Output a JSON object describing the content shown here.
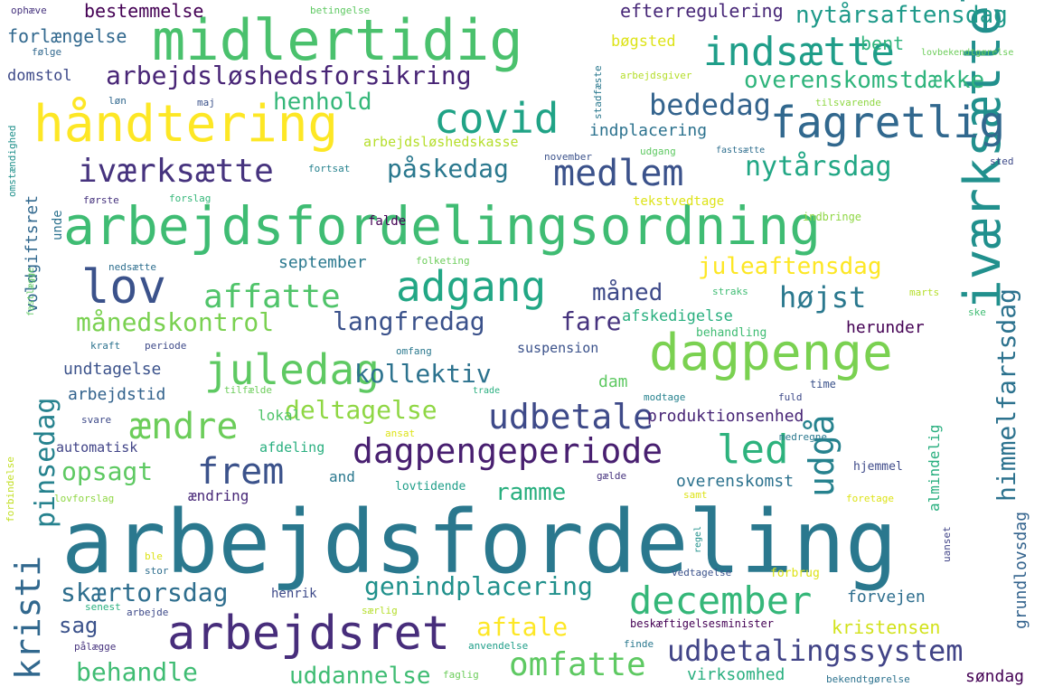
{
  "words": [
    {
      "text": "arbejdsfordeling",
      "color": "#2a788e"
    },
    {
      "text": "arbejdsfordelingsordning",
      "color": "#3fbc73"
    },
    {
      "text": "midlertidig",
      "color": "#4ac16d"
    },
    {
      "text": "håndtering",
      "color": "#fde725"
    },
    {
      "text": "iværksættelse",
      "color": "#21908d"
    },
    {
      "text": "dagpenge",
      "color": "#7ad151"
    },
    {
      "text": "arbejdsret",
      "color": "#472d7b"
    },
    {
      "text": "fagretlig",
      "color": "#31688e"
    },
    {
      "text": "lov",
      "color": "#3b528b"
    },
    {
      "text": "covid",
      "color": "#20a386"
    },
    {
      "text": "indsætte",
      "color": "#1f9e89"
    },
    {
      "text": "adgang",
      "color": "#22a785"
    },
    {
      "text": "juledag",
      "color": "#5ec962"
    },
    {
      "text": "december",
      "color": "#35b779"
    },
    {
      "text": "dagpengeperiode",
      "color": "#481f70"
    },
    {
      "text": "udbetale",
      "color": "#3e4a89"
    },
    {
      "text": "led",
      "color": "#2db27d"
    },
    {
      "text": "medlem",
      "color": "#3b528b"
    },
    {
      "text": "iværksætte",
      "color": "#46337e"
    },
    {
      "text": "udgå",
      "color": "#26828e"
    },
    {
      "text": "himmelfartsdag",
      "color": "#2c728e"
    },
    {
      "text": "udbetalingssystem",
      "color": "#414487"
    },
    {
      "text": "frem",
      "color": "#3b528b"
    },
    {
      "text": "ændre",
      "color": "#6ccd5a"
    },
    {
      "text": "affatte",
      "color": "#50c46a"
    },
    {
      "text": "omfatte",
      "color": "#5ec962"
    },
    {
      "text": "kristi",
      "color": "#31688e"
    },
    {
      "text": "pinsedag",
      "color": "#26828e"
    },
    {
      "text": "nytårsdag",
      "color": "#22a785"
    },
    {
      "text": "bededag",
      "color": "#33638d"
    },
    {
      "text": "arbejdsløshedsforsikring",
      "color": "#482576"
    },
    {
      "text": "overenskomstdække",
      "color": "#2fb47c"
    },
    {
      "text": "nytårsaftensdag",
      "color": "#1f9a8a"
    },
    {
      "text": "behandle",
      "color": "#3fbc73"
    },
    {
      "text": "aftale",
      "color": "#fde725"
    },
    {
      "text": "genindplacering",
      "color": "#21918c"
    },
    {
      "text": "skærtorsdag",
      "color": "#2e6e8e"
    },
    {
      "text": "langfredag",
      "color": "#3b528b"
    },
    {
      "text": "månedskontrol",
      "color": "#7ad151"
    },
    {
      "text": "deltagelse",
      "color": "#8fd744"
    },
    {
      "text": "kollektiv",
      "color": "#2c728e"
    },
    {
      "text": "påskedag",
      "color": "#2a788e"
    },
    {
      "text": "henhold",
      "color": "#35b779"
    },
    {
      "text": "juleaftensdag",
      "color": "#fde725"
    },
    {
      "text": "måned",
      "color": "#3e4a89"
    },
    {
      "text": "fare",
      "color": "#46337e"
    },
    {
      "text": "højst",
      "color": "#2a788e"
    },
    {
      "text": "uddannelse",
      "color": "#3fbc73"
    },
    {
      "text": "ramme",
      "color": "#29af7f"
    },
    {
      "text": "opsagt",
      "color": "#5ec962"
    },
    {
      "text": "sag",
      "color": "#3b528b"
    },
    {
      "text": "bestemmelse",
      "color": "#440154"
    },
    {
      "text": "efterregulering",
      "color": "#482878"
    },
    {
      "text": "forlængelse",
      "color": "#31688e"
    },
    {
      "text": "bøgsted",
      "color": "#dde318"
    },
    {
      "text": "bent",
      "color": "#2fb47c"
    },
    {
      "text": "domstol",
      "color": "#3e4a89"
    },
    {
      "text": "arbejdsløshedskasse",
      "color": "#b5de2b"
    },
    {
      "text": "indplacering",
      "color": "#2c728e"
    },
    {
      "text": "september",
      "color": "#2a788e"
    },
    {
      "text": "undtagelse",
      "color": "#3b528b"
    },
    {
      "text": "arbejdstid",
      "color": "#33638d"
    },
    {
      "text": "produktionsenhed",
      "color": "#482576"
    },
    {
      "text": "afskedigelse",
      "color": "#29af7f"
    },
    {
      "text": "herunder",
      "color": "#440154"
    },
    {
      "text": "lokal",
      "color": "#50c46a"
    },
    {
      "text": "dam",
      "color": "#5ec962"
    },
    {
      "text": "automatisk",
      "color": "#414487"
    },
    {
      "text": "afdeling",
      "color": "#29af7f"
    },
    {
      "text": "overenskomst",
      "color": "#2c728e"
    },
    {
      "text": "kristensen",
      "color": "#d2e21b"
    },
    {
      "text": "forvejen",
      "color": "#2e6e8e"
    },
    {
      "text": "søndag",
      "color": "#440154"
    },
    {
      "text": "virksomhed",
      "color": "#29af7f"
    },
    {
      "text": "grundlovsdag",
      "color": "#33638d"
    },
    {
      "text": "voldgiftsret",
      "color": "#31688e"
    },
    {
      "text": "almindelig",
      "color": "#29af7f"
    },
    {
      "text": "and",
      "color": "#2a788e"
    },
    {
      "text": "ændring",
      "color": "#482878"
    },
    {
      "text": "henrik",
      "color": "#3e4a89"
    },
    {
      "text": "lovtidende",
      "color": "#1f9e89"
    },
    {
      "text": "behandling",
      "color": "#3fbc73"
    },
    {
      "text": "suspension",
      "color": "#3b528b"
    },
    {
      "text": "hjemmel",
      "color": "#3e4a89"
    },
    {
      "text": "unde",
      "color": "#2c728e"
    },
    {
      "text": "falde",
      "color": "#440154"
    },
    {
      "text": "tekstvedtage",
      "color": "#dde318"
    },
    {
      "text": "indbringe",
      "color": "#8fd744"
    },
    {
      "text": "ophæve",
      "color": "#46337e"
    },
    {
      "text": "betingelse",
      "color": "#5ec962"
    },
    {
      "text": "følge",
      "color": "#31688e"
    },
    {
      "text": "løn",
      "color": "#31688e"
    },
    {
      "text": "maj",
      "color": "#3b528b"
    },
    {
      "text": "stadfæste",
      "color": "#2a788e"
    },
    {
      "text": "arbejdsgiver",
      "color": "#b5de2b"
    },
    {
      "text": "lovbekendtgørelse",
      "color": "#6ccd5a"
    },
    {
      "text": "tilsvarende",
      "color": "#8fd744"
    },
    {
      "text": "fortsat",
      "color": "#26828e"
    },
    {
      "text": "november",
      "color": "#3b528b"
    },
    {
      "text": "udgang",
      "color": "#5ec962"
    },
    {
      "text": "fastsætte",
      "color": "#2e6e8e"
    },
    {
      "text": "sted",
      "color": "#3e4a89"
    },
    {
      "text": "omstændighed",
      "color": "#21918c"
    },
    {
      "text": "første",
      "color": "#46337e"
    },
    {
      "text": "forslag",
      "color": "#35b779"
    },
    {
      "text": "nedsætte",
      "color": "#2e6e8e"
    },
    {
      "text": "folketing",
      "color": "#6ccd5a"
    },
    {
      "text": "fastlægge",
      "color": "#5ec962"
    },
    {
      "text": "straks",
      "color": "#3fbc73"
    },
    {
      "text": "marts",
      "color": "#b5de2b"
    },
    {
      "text": "ske",
      "color": "#3fbc73"
    },
    {
      "text": "kraft",
      "color": "#2c728e"
    },
    {
      "text": "periode",
      "color": "#3e4a89"
    },
    {
      "text": "omfang",
      "color": "#2a788e"
    },
    {
      "text": "tilfælde",
      "color": "#6ccd5a"
    },
    {
      "text": "trade",
      "color": "#29af7f"
    },
    {
      "text": "modtage",
      "color": "#26828e"
    },
    {
      "text": "time",
      "color": "#3b528b"
    },
    {
      "text": "fuld",
      "color": "#3e4a89"
    },
    {
      "text": "svare",
      "color": "#3e4a89"
    },
    {
      "text": "ansat",
      "color": "#dde318"
    },
    {
      "text": "medregne",
      "color": "#2a788e"
    },
    {
      "text": "forbindelse",
      "color": "#c2df23"
    },
    {
      "text": "gælde",
      "color": "#46337e"
    },
    {
      "text": "samt",
      "color": "#dde318"
    },
    {
      "text": "lovforslag",
      "color": "#8fd744"
    },
    {
      "text": "foretage",
      "color": "#dde318"
    },
    {
      "text": "regel",
      "color": "#21918c"
    },
    {
      "text": "ble",
      "color": "#dde318"
    },
    {
      "text": "uanset",
      "color": "#414487"
    },
    {
      "text": "stor",
      "color": "#2e6e8e"
    },
    {
      "text": "vedtagelse",
      "color": "#3b528b"
    },
    {
      "text": "forbrug",
      "color": "#dde318"
    },
    {
      "text": "senest",
      "color": "#29af7f"
    },
    {
      "text": "særlig",
      "color": "#b5de2b"
    },
    {
      "text": "arbejde",
      "color": "#3e4a89"
    },
    {
      "text": "beskæftigelsesminister",
      "color": "#440154"
    },
    {
      "text": "pålægge",
      "color": "#46337e"
    },
    {
      "text": "anvendelse",
      "color": "#1f9e89"
    },
    {
      "text": "finde",
      "color": "#2a788e"
    },
    {
      "text": "faglig",
      "color": "#6ccd5a"
    },
    {
      "text": "bekendtgørelse",
      "color": "#2c728e"
    }
  ]
}
